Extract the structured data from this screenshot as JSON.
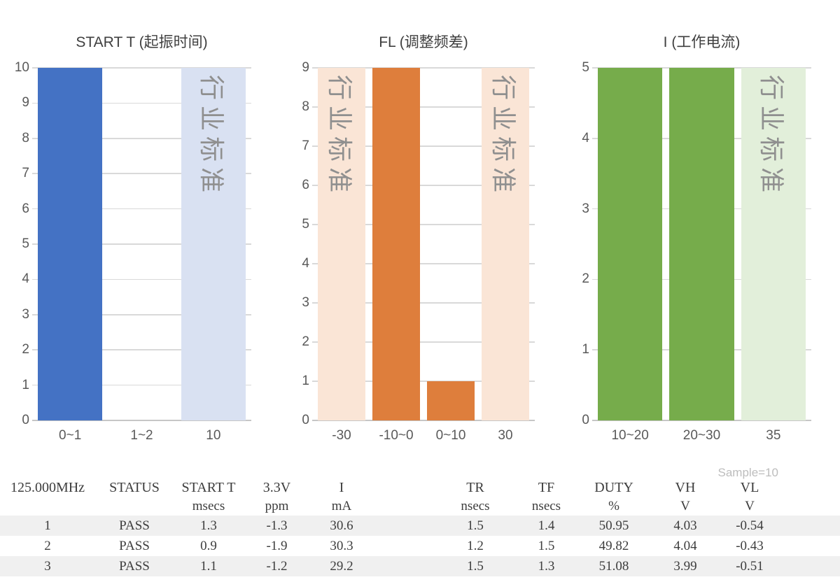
{
  "chart_data": [
    {
      "type": "bar",
      "title": "START T (起振时间)",
      "categories": [
        "0~1",
        "1~2",
        "10"
      ],
      "values": [
        10,
        0,
        10
      ],
      "bar_kinds": [
        "data",
        "data",
        "standard"
      ],
      "standard_label": "行业标准",
      "ylim": [
        0,
        10
      ],
      "ytick_step": 1,
      "xlabel": "",
      "ylabel": "",
      "grid": true,
      "legend": false,
      "colors": {
        "data": "#4472c4",
        "standard": "#d9e1f2"
      }
    },
    {
      "type": "bar",
      "title": "FL (调整频差)",
      "categories": [
        "-30",
        "-10~0",
        "0~10",
        "30"
      ],
      "values": [
        9,
        9,
        1,
        9
      ],
      "bar_kinds": [
        "standard",
        "data",
        "data",
        "standard"
      ],
      "standard_label": "行业标准",
      "ylim": [
        0,
        9
      ],
      "ytick_step": 1,
      "xlabel": "",
      "ylabel": "",
      "grid": true,
      "legend": false,
      "colors": {
        "data": "#de7e3c",
        "standard": "#fae5d6"
      }
    },
    {
      "type": "bar",
      "title": "I (工作电流)",
      "categories": [
        "10~20",
        "20~30",
        "35"
      ],
      "values": [
        5,
        5,
        5
      ],
      "bar_kinds": [
        "data",
        "data",
        "standard"
      ],
      "standard_label": "行业标准",
      "ylim": [
        0,
        5
      ],
      "ytick_step": 1,
      "xlabel": "",
      "ylabel": "",
      "grid": true,
      "legend": false,
      "colors": {
        "data": "#76ac4b",
        "standard": "#e2efda"
      }
    }
  ],
  "table": {
    "sample_note": "Sample=10",
    "columns": [
      {
        "label": "125.000MHz",
        "unit": ""
      },
      {
        "label": "STATUS",
        "unit": ""
      },
      {
        "label": "START T",
        "unit": "msecs"
      },
      {
        "label": "3.3V",
        "unit": "ppm"
      },
      {
        "label": "I",
        "unit": "mA"
      },
      {
        "label": "TR",
        "unit": "nsecs"
      },
      {
        "label": "TF",
        "unit": "nsecs"
      },
      {
        "label": "DUTY",
        "unit": "%"
      },
      {
        "label": "VH",
        "unit": "V"
      },
      {
        "label": "VL",
        "unit": "V"
      }
    ],
    "rows": [
      [
        "1",
        "PASS",
        "1.3",
        "-1.3",
        "30.6",
        "1.5",
        "1.4",
        "50.95",
        "4.03",
        "-0.54"
      ],
      [
        "2",
        "PASS",
        "0.9",
        "-1.9",
        "30.3",
        "1.2",
        "1.5",
        "49.82",
        "4.04",
        "-0.43"
      ],
      [
        "3",
        "PASS",
        "1.1",
        "-1.2",
        "29.2",
        "1.5",
        "1.3",
        "51.08",
        "3.99",
        "-0.51"
      ]
    ],
    "status_colors": {
      "PASS": "#3d3d3d"
    }
  }
}
